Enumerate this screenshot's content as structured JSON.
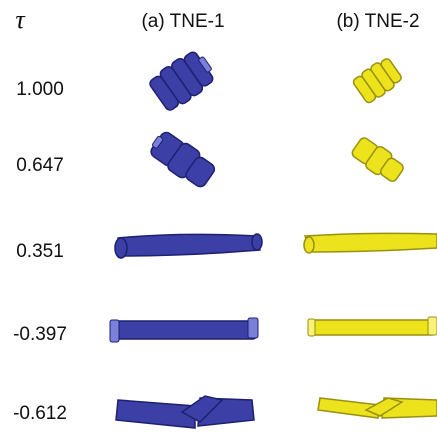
{
  "header": {
    "symbol": "τ",
    "columns": [
      "(a) TNE-1",
      "(b) TNE-2"
    ]
  },
  "rows": [
    "1.000",
    "0.647",
    "0.351",
    "-0.397",
    "-0.612"
  ]
}
